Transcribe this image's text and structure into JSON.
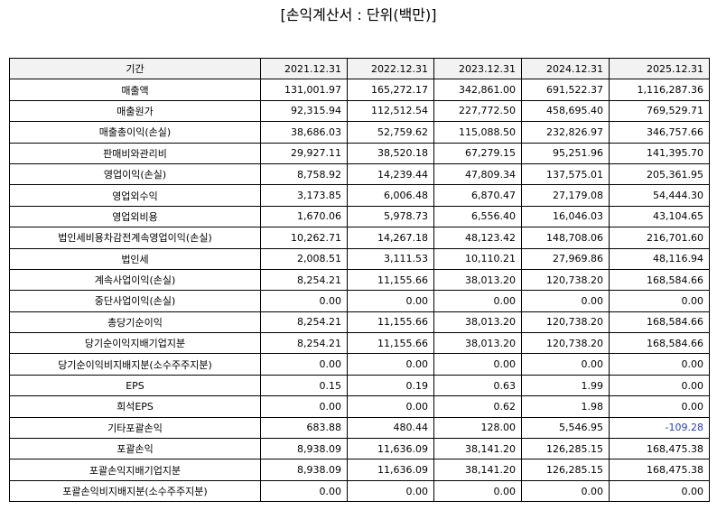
{
  "title": "[손익계산서 : 단위(백만)]",
  "colors": {
    "negative": "#2a3ea8",
    "header_bg": "#f2f2f2"
  },
  "table": {
    "headers": [
      "기간",
      "2021.12.31",
      "2022.12.31",
      "2023.12.31",
      "2024.12.31",
      "2025.12.31"
    ],
    "rows": [
      {
        "label": "매출액",
        "values": [
          "131,001.97",
          "165,272.17",
          "342,861.00",
          "691,522.37",
          "1,116,287.36"
        ]
      },
      {
        "label": "매출원가",
        "values": [
          "92,315.94",
          "112,512.54",
          "227,772.50",
          "458,695.40",
          "769,529.71"
        ]
      },
      {
        "label": "매출총이익(손실)",
        "values": [
          "38,686.03",
          "52,759.62",
          "115,088.50",
          "232,826.97",
          "346,757.66"
        ]
      },
      {
        "label": "판매비와관리비",
        "values": [
          "29,927.11",
          "38,520.18",
          "67,279.15",
          "95,251.96",
          "141,395.70"
        ]
      },
      {
        "label": "영업이익(손실)",
        "values": [
          "8,758.92",
          "14,239.44",
          "47,809.34",
          "137,575.01",
          "205,361.95"
        ]
      },
      {
        "label": "영업외수익",
        "values": [
          "3,173.85",
          "6,006.48",
          "6,870.47",
          "27,179.08",
          "54,444.30"
        ]
      },
      {
        "label": "영업외비용",
        "values": [
          "1,670.06",
          "5,978.73",
          "6,556.40",
          "16,046.03",
          "43,104.65"
        ]
      },
      {
        "label": "법인세비용차감전계속영업이익(손실)",
        "values": [
          "10,262.71",
          "14,267.18",
          "48,123.42",
          "148,708.06",
          "216,701.60"
        ]
      },
      {
        "label": "법인세",
        "values": [
          "2,008.51",
          "3,111.53",
          "10,110.21",
          "27,969.86",
          "48,116.94"
        ]
      },
      {
        "label": "계속사업이익(손실)",
        "values": [
          "8,254.21",
          "11,155.66",
          "38,013.20",
          "120,738.20",
          "168,584.66"
        ]
      },
      {
        "label": "중단사업이익(손실)",
        "values": [
          "0.00",
          "0.00",
          "0.00",
          "0.00",
          "0.00"
        ]
      },
      {
        "label": "총당기순이익",
        "values": [
          "8,254.21",
          "11,155.66",
          "38,013.20",
          "120,738.20",
          "168,584.66"
        ]
      },
      {
        "label": "당기순이익지배기업지분",
        "values": [
          "8,254.21",
          "11,155.66",
          "38,013.20",
          "120,738.20",
          "168,584.66"
        ]
      },
      {
        "label": "당기순이익비지배지분(소수주주지분)",
        "values": [
          "0.00",
          "0.00",
          "0.00",
          "0.00",
          "0.00"
        ]
      },
      {
        "label": "EPS",
        "values": [
          "0.15",
          "0.19",
          "0.63",
          "1.99",
          "0.00"
        ]
      },
      {
        "label": "희석EPS",
        "values": [
          "0.00",
          "0.00",
          "0.62",
          "1.98",
          "0.00"
        ]
      },
      {
        "label": "기타포괄손익",
        "values": [
          "683.88",
          "480.44",
          "128.00",
          "5,546.95",
          "-109.28"
        ]
      },
      {
        "label": "포괄손익",
        "values": [
          "8,938.09",
          "11,636.09",
          "38,141.20",
          "126,285.15",
          "168,475.38"
        ]
      },
      {
        "label": "포괄손익지배기업지분",
        "values": [
          "8,938.09",
          "11,636.09",
          "38,141.20",
          "126,285.15",
          "168,475.38"
        ]
      },
      {
        "label": "포괄손익비지배지분(소수주주지분)",
        "values": [
          "0.00",
          "0.00",
          "0.00",
          "0.00",
          "0.00"
        ]
      }
    ]
  }
}
